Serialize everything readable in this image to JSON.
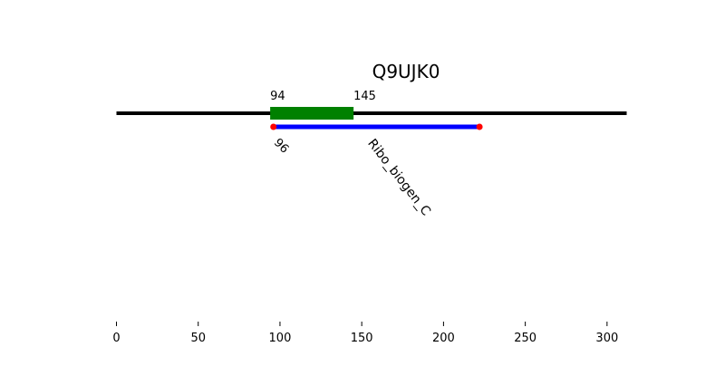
{
  "chart_data": {
    "type": "domain-track",
    "title": "Q9UJK0",
    "protein_length": 312,
    "xlim": [
      0,
      312
    ],
    "xticks": [
      0,
      50,
      100,
      150,
      200,
      250,
      300
    ],
    "xtick_labels": [
      "0",
      "50",
      "100",
      "150",
      "200",
      "250",
      "300"
    ],
    "regions": [
      {
        "name": "region",
        "start": 94,
        "end": 145,
        "start_label": "94",
        "end_label": "145",
        "color": "#008000"
      }
    ],
    "domains": [
      {
        "name": "Ribo_biogen_C",
        "start": 96,
        "end": 222,
        "start_label": "96",
        "color": "#0000ff",
        "endpoint_color": "#ff0000"
      }
    ],
    "backbone_color": "#000000"
  }
}
